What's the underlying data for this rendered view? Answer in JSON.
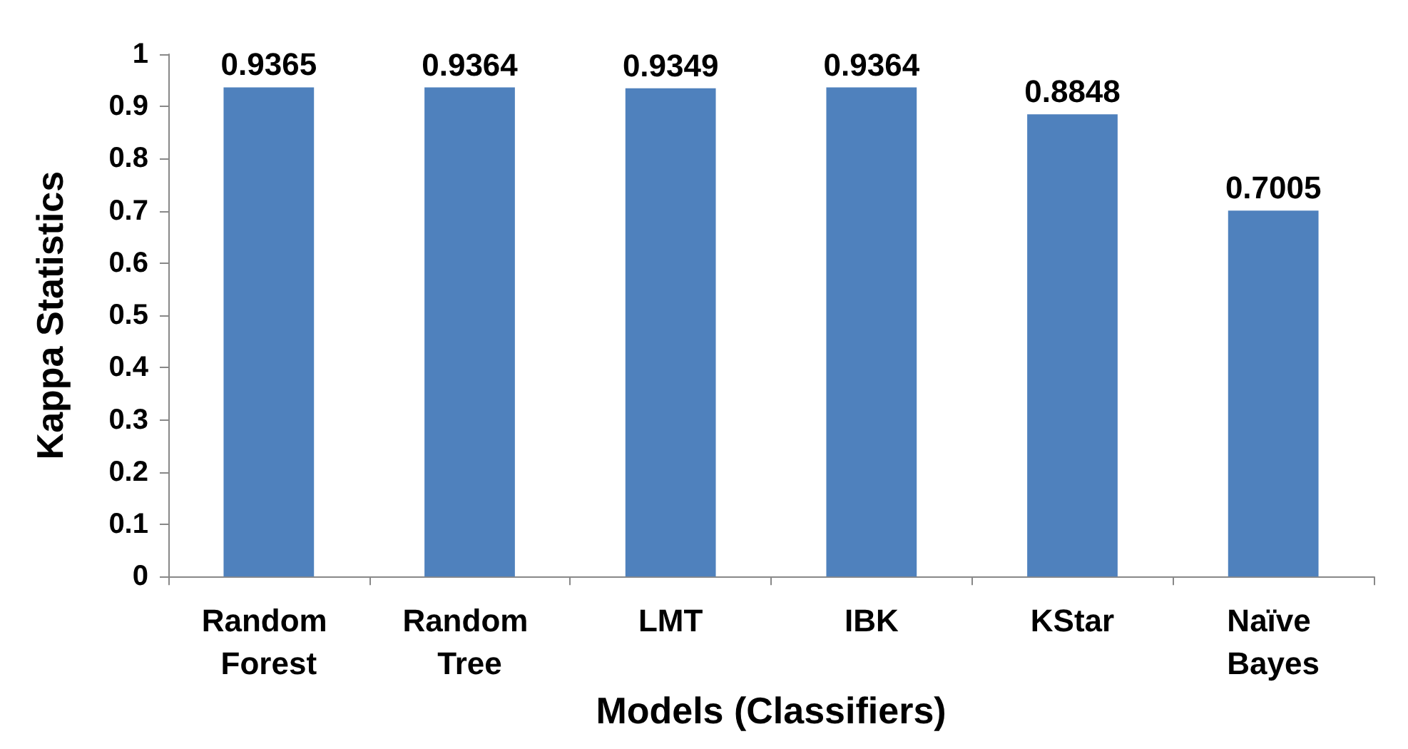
{
  "chart_data": {
    "type": "bar",
    "xlabel": "Models (Classifiers)",
    "ylabel": "Kappa Statistics",
    "categories": [
      "Random Forest",
      "Random Tree",
      "LMT",
      "IBK",
      "KStar",
      "Naïve Bayes"
    ],
    "values": [
      0.9365,
      0.9364,
      0.9349,
      0.9364,
      0.8848,
      0.7005
    ],
    "color": "#4f81bd",
    "data_labels": true,
    "grid": false,
    "ylim": [
      0,
      1
    ],
    "yticks": [
      0,
      0.1,
      0.2,
      0.3,
      0.4,
      0.5,
      0.6,
      0.7,
      0.8,
      0.9,
      1
    ]
  }
}
